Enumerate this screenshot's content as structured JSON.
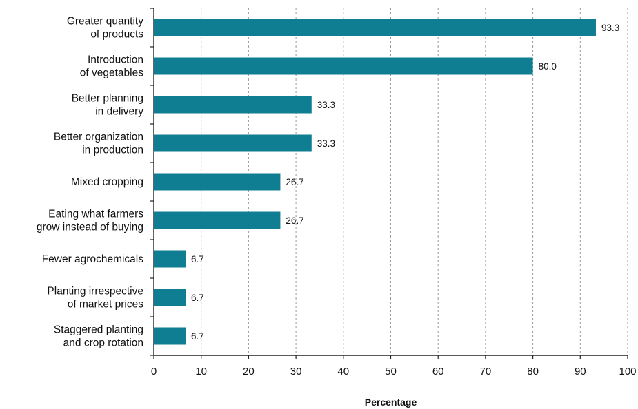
{
  "chart_data": {
    "type": "bar",
    "orientation": "horizontal",
    "categories": [
      [
        "Greater quantity",
        "of products"
      ],
      [
        "Introduction",
        "of vegetables"
      ],
      [
        "Better planning",
        "in delivery"
      ],
      [
        "Better organization",
        "in production"
      ],
      [
        "Mixed cropping"
      ],
      [
        "Eating what farmers",
        "grow instead of buying"
      ],
      [
        "Fewer agrochemicals"
      ],
      [
        "Planting irrespective",
        "of market prices"
      ],
      [
        "Staggered planting",
        "and crop rotation"
      ]
    ],
    "values": [
      93.3,
      80.0,
      33.3,
      33.3,
      26.7,
      26.7,
      6.7,
      6.7,
      6.7
    ],
    "value_labels": [
      "93.3",
      "80.0",
      "33.3",
      "33.3",
      "26.7",
      "26.7",
      "6.7",
      "6.7",
      "6.7"
    ],
    "xlabel": "Percentage",
    "ylabel": "",
    "xlim": [
      0,
      100
    ],
    "xticks": [
      0,
      10,
      20,
      30,
      40,
      50,
      60,
      70,
      80,
      90,
      100
    ],
    "grid": "vertical dashed",
    "bar_color": "#0f7d92",
    "legend": "none"
  }
}
